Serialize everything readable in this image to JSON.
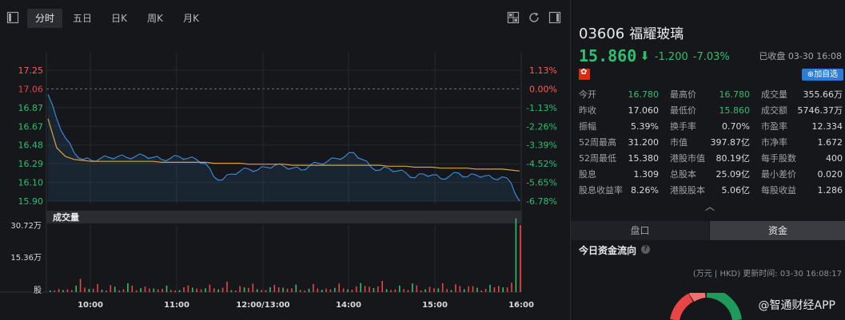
{
  "toolbar": {
    "tabs": [
      {
        "label": "分时",
        "active": true
      },
      {
        "label": "五日",
        "active": false
      },
      {
        "label": "日K",
        "active": false
      },
      {
        "label": "周K",
        "active": false
      },
      {
        "label": "月K",
        "active": false
      }
    ]
  },
  "chart_data": {
    "type": "line",
    "title": "",
    "prev_close": 17.06,
    "price_ticks": [
      "17.25",
      "17.06",
      "16.87",
      "16.67",
      "16.48",
      "16.29",
      "16.10",
      "15.90"
    ],
    "pct_ticks": [
      "1.13%",
      "0.00%",
      "-1.13%",
      "-2.26%",
      "-3.39%",
      "-4.52%",
      "-5.65%",
      "-6.78%"
    ],
    "ylim": [
      15.9,
      17.25
    ],
    "time_ticks": [
      "10:00",
      "11:00",
      "12:00/13:00",
      "14:00",
      "15:00",
      "16:00"
    ],
    "volume_label": "成交量",
    "volume_ticks": [
      "30.72万",
      "15.36万",
      "股"
    ],
    "series": [
      {
        "name": "price",
        "color": "#3d8fe0",
        "values": [
          17.0,
          16.75,
          16.55,
          16.4,
          16.33,
          16.32,
          16.34,
          16.35,
          16.36,
          16.35,
          16.36,
          16.37,
          16.35,
          16.33,
          16.34,
          16.36,
          16.34,
          16.33,
          16.29,
          16.15,
          16.12,
          16.18,
          16.21,
          16.23,
          16.22,
          16.25,
          16.27,
          16.26,
          16.24,
          16.22,
          16.27,
          16.29,
          16.31,
          16.34,
          16.36,
          16.4,
          16.33,
          16.25,
          16.22,
          16.24,
          16.21,
          16.19,
          16.14,
          16.18,
          16.17,
          16.13,
          16.16,
          16.19,
          16.15,
          16.17,
          16.16,
          16.13,
          16.15,
          16.09,
          15.9
        ]
      },
      {
        "name": "avg",
        "color": "#d8a33a",
        "values": [
          16.75,
          16.45,
          16.36,
          16.33,
          16.32,
          16.31,
          16.31,
          16.31,
          16.31,
          16.31,
          16.31,
          16.31,
          16.31,
          16.3,
          16.3,
          16.3,
          16.3,
          16.3,
          16.3,
          16.29,
          16.29,
          16.29,
          16.29,
          16.28,
          16.28,
          16.28,
          16.28,
          16.28,
          16.27,
          16.27,
          16.27,
          16.27,
          16.27,
          16.27,
          16.27,
          16.27,
          16.27,
          16.27,
          16.27,
          16.26,
          16.26,
          16.26,
          16.25,
          16.25,
          16.25,
          16.24,
          16.24,
          16.24,
          16.24,
          16.23,
          16.23,
          16.23,
          16.23,
          16.22,
          16.21
        ]
      }
    ],
    "volume": [
      0.02,
      0.05,
      0.03,
      0.14,
      0.06,
      0.1,
      0.04,
      0.08,
      0.03,
      0.12,
      0.05,
      0.09,
      0.04,
      0.07,
      0.03,
      0.06,
      0.11,
      0.04,
      0.08,
      0.05,
      0.13,
      0.03,
      0.07,
      0.09,
      0.04,
      0.06,
      0.12,
      0.05,
      0.08,
      0.03,
      0.1,
      0.06,
      0.04,
      0.09,
      0.05,
      0.07,
      0.15,
      0.06,
      0.12,
      0.04,
      0.08,
      0.05,
      0.1,
      0.03,
      0.07,
      0.11,
      0.05,
      0.09,
      0.06,
      0.08,
      0.04,
      0.12,
      0.07,
      0.1,
      1.0
    ],
    "volume_colors": [
      "up_red",
      "down_green"
    ],
    "grid": true
  },
  "quote": {
    "code": "03606",
    "name": "福耀玻璃",
    "last": "15.860",
    "change": "-1.200",
    "change_pct": "-7.03%",
    "status": "已收盘 03-30 16:08",
    "market_flag": "hong-kong-flag-icon",
    "watch_label": "加自选",
    "stats": [
      [
        {
          "label": "今开",
          "value": "16.780",
          "tone": "down"
        },
        {
          "label": "最高价",
          "value": "16.780",
          "tone": "down"
        },
        {
          "label": "成交量",
          "value": "355.66万",
          "tone": "normal"
        }
      ],
      [
        {
          "label": "昨收",
          "value": "17.060",
          "tone": "normal"
        },
        {
          "label": "最低价",
          "value": "15.860",
          "tone": "down"
        },
        {
          "label": "成交额",
          "value": "5746.37万",
          "tone": "normal"
        }
      ],
      [
        {
          "label": "振幅",
          "value": "5.39%",
          "tone": "normal"
        },
        {
          "label": "换手率",
          "value": "0.70%",
          "tone": "normal"
        },
        {
          "label": "市盈率",
          "value": "12.334",
          "tone": "normal"
        }
      ],
      [
        {
          "label": "52周最高",
          "value": "31.200",
          "tone": "normal"
        },
        {
          "label": "市值",
          "value": "397.87亿",
          "tone": "normal"
        },
        {
          "label": "市净率",
          "value": "1.672",
          "tone": "normal"
        }
      ],
      [
        {
          "label": "52周最低",
          "value": "15.380",
          "tone": "normal"
        },
        {
          "label": "港股市值",
          "value": "80.19亿",
          "tone": "normal"
        },
        {
          "label": "每手股数",
          "value": "400",
          "tone": "normal"
        }
      ],
      [
        {
          "label": "股息",
          "value": "1.309",
          "tone": "normal"
        },
        {
          "label": "总股本",
          "value": "25.09亿",
          "tone": "normal"
        },
        {
          "label": "最小差价",
          "value": "0.020",
          "tone": "normal"
        }
      ],
      [
        {
          "label": "股息收益率",
          "value": "8.26%",
          "tone": "normal"
        },
        {
          "label": "港股股本",
          "value": "5.06亿",
          "tone": "normal"
        },
        {
          "label": "每股收益",
          "value": "1.286",
          "tone": "normal"
        }
      ]
    ]
  },
  "tabs": {
    "pankou": "盘口",
    "zijin": "资金"
  },
  "flow": {
    "title": "今日资金流向",
    "meta": "(万元 | HKD) 更新时间: 03-30 16:08:17"
  },
  "watermark": "@智通财经APP",
  "colors": {
    "up": "#ff5a5a",
    "down": "#2fbf71",
    "accent": "#2d7cd6"
  }
}
